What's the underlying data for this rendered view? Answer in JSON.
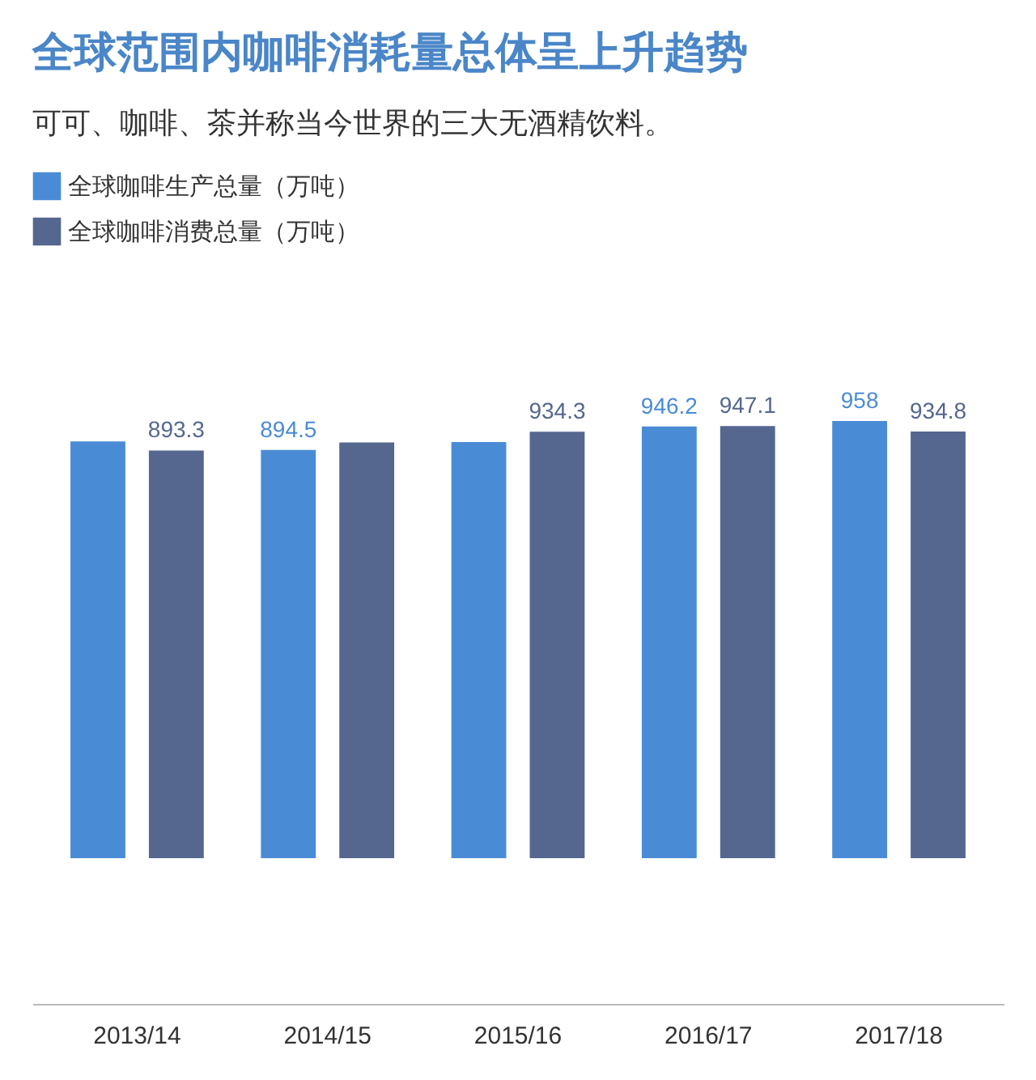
{
  "chart_data": {
    "type": "bar",
    "title": "全球范围内咖啡消耗量总体呈上升趋势",
    "subtitle": "可可、咖啡、茶并称当今世界的三大无酒精饮料。",
    "categories": [
      "2013/14",
      "2014/15",
      "2015/16",
      "2016/17",
      "2017/18"
    ],
    "legend": "top left",
    "tick_labels": "x",
    "series": [
      {
        "name": "全球咖啡生产总量（万吨）",
        "color": "#4a8bd6",
        "values": [
          913,
          894.5,
          912,
          946.2,
          958
        ],
        "value_labels": [
          null,
          "894.5",
          null,
          "946.2",
          "958"
        ]
      },
      {
        "name": "全球咖啡消费总量（万吨）",
        "color": "#55668f",
        "values": [
          893.3,
          911,
          934.3,
          947.1,
          934.8
        ],
        "value_labels": [
          "893.3",
          null,
          "934.3",
          "947.1",
          "934.8"
        ]
      }
    ]
  }
}
